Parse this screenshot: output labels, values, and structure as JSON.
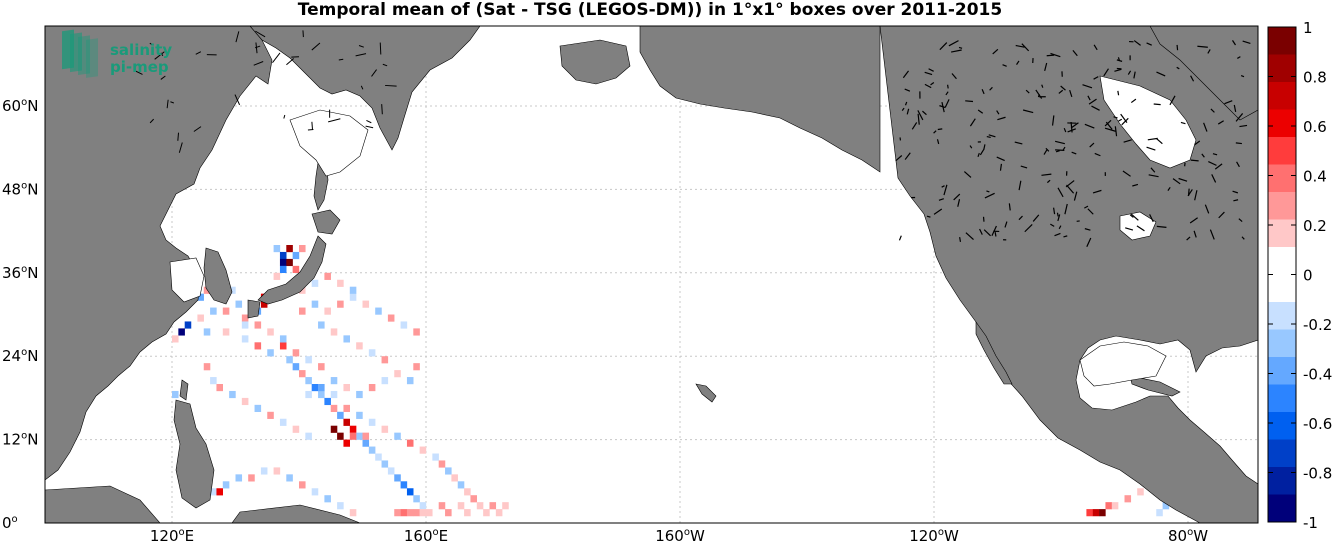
{
  "title": "Temporal mean of (Sat - TSG (LEGOS-DM)) in 1°x1° boxes over 2011-2015",
  "logo": {
    "line1": "salinity",
    "line2": "pi-mep",
    "color": "#1a9a7a"
  },
  "colors": {
    "land": "#808080",
    "ocean": "#ffffff",
    "grid": "#c8c8c8",
    "coast": "#000000"
  },
  "lat_labels": [
    {
      "deg": 60,
      "text": "60",
      "suffix": "N"
    },
    {
      "deg": 48,
      "text": "48",
      "suffix": "N"
    },
    {
      "deg": 36,
      "text": "36",
      "suffix": "N"
    },
    {
      "deg": 24,
      "text": "24",
      "suffix": "N"
    },
    {
      "deg": 12,
      "text": "12",
      "suffix": "N"
    },
    {
      "deg": 0,
      "text": "0",
      "suffix": ""
    }
  ],
  "lon_labels": [
    {
      "deg": 120,
      "text": "120",
      "suffix": "E"
    },
    {
      "deg": 160,
      "text": "160",
      "suffix": "E"
    },
    {
      "deg": 200,
      "text": "160",
      "suffix": "W"
    },
    {
      "deg": 240,
      "text": "120",
      "suffix": "W"
    },
    {
      "deg": 280,
      "text": "80",
      "suffix": "W"
    }
  ],
  "colorbar": {
    "min": -1,
    "max": 1,
    "tick_labels": [
      "1",
      "0.8",
      "0.6",
      "0.4",
      "0.2",
      "0",
      "-0.2",
      "-0.4",
      "-0.6",
      "-0.8",
      "-1"
    ],
    "colors_top_to_bottom": [
      "#7a0000",
      "#a00000",
      "#c80000",
      "#ec0000",
      "#ff3c3c",
      "#ff7070",
      "#ff9898",
      "#ffc8c8",
      "#ffffff",
      "#ffffff",
      "#c8e0ff",
      "#98c8ff",
      "#64a8ff",
      "#2c84ff",
      "#0060f0",
      "#0040c8",
      "#0020a0",
      "#00007a"
    ]
  },
  "chart_data": {
    "type": "heatmap",
    "title": "Temporal mean of (Sat - TSG (LEGOS-DM)) in 1°x1° boxes over 2011-2015",
    "xlabel": "",
    "ylabel": "",
    "lon_range_east": [
      100,
      293
    ],
    "lat_range": [
      0,
      70
    ],
    "value_range": [
      -1,
      1
    ],
    "cells": [
      [
        136,
        39,
        -0.3
      ],
      [
        137,
        38,
        -0.7
      ],
      [
        137,
        37,
        -1
      ],
      [
        138,
        39,
        0.8
      ],
      [
        138,
        37,
        0.9
      ],
      [
        139,
        38,
        -0.4
      ],
      [
        139,
        36,
        0.4
      ],
      [
        140,
        39,
        0.3
      ],
      [
        141,
        36,
        -0.3
      ],
      [
        137,
        36,
        -0.5
      ],
      [
        136,
        35,
        0.2
      ],
      [
        116,
        35,
        1
      ],
      [
        117,
        35,
        1
      ],
      [
        118,
        35,
        1
      ],
      [
        119,
        35,
        0.6
      ],
      [
        121,
        34,
        -0.6
      ],
      [
        122,
        33,
        -0.8
      ],
      [
        123,
        33,
        -0.5
      ],
      [
        122,
        34,
        -0.3
      ],
      [
        124,
        32,
        -0.4
      ],
      [
        125,
        33,
        0.3
      ],
      [
        127,
        32,
        -0.3
      ],
      [
        128,
        33,
        -0.2
      ],
      [
        129,
        33,
        -0.2
      ],
      [
        134,
        32,
        0.6
      ],
      [
        134,
        31,
        0.7
      ],
      [
        133,
        30,
        -0.4
      ],
      [
        132,
        30,
        0.3
      ],
      [
        131,
        29,
        0.3
      ],
      [
        130,
        31,
        -0.3
      ],
      [
        128,
        30,
        0.3
      ],
      [
        126,
        30,
        -0.3
      ],
      [
        124,
        29,
        0.2
      ],
      [
        122,
        28,
        -0.7
      ],
      [
        121,
        27,
        -0.9
      ],
      [
        120,
        26,
        0.2
      ],
      [
        125,
        27,
        -0.3
      ],
      [
        128,
        27,
        0.2
      ],
      [
        131,
        26,
        -0.2
      ],
      [
        133,
        25,
        0.4
      ],
      [
        135,
        24,
        -0.3
      ],
      [
        137,
        25,
        0.5
      ],
      [
        138,
        23,
        -0.3
      ],
      [
        139,
        22,
        -0.4
      ],
      [
        140,
        21,
        0.3
      ],
      [
        141,
        20,
        -0.3
      ],
      [
        142,
        19,
        -0.5
      ],
      [
        143,
        18,
        -0.3
      ],
      [
        144,
        17,
        -0.5
      ],
      [
        145,
        16,
        0.3
      ],
      [
        146,
        15,
        -0.4
      ],
      [
        147,
        14,
        0.7
      ],
      [
        148,
        13,
        0.6
      ],
      [
        149,
        12,
        -0.3
      ],
      [
        150,
        11,
        -0.4
      ],
      [
        151,
        10,
        -0.3
      ],
      [
        152,
        9,
        -0.2
      ],
      [
        153,
        8,
        -0.3
      ],
      [
        154,
        7,
        -0.2
      ],
      [
        155,
        6,
        -0.4
      ],
      [
        156,
        5,
        -0.5
      ],
      [
        157,
        4,
        -0.6
      ],
      [
        158,
        3,
        -0.3
      ],
      [
        159,
        2,
        -0.2
      ],
      [
        160,
        1,
        0.2
      ],
      [
        145,
        13,
        1
      ],
      [
        146,
        12,
        0.9
      ],
      [
        147,
        11,
        0.6
      ],
      [
        148,
        12,
        0.4
      ],
      [
        150,
        12,
        0.3
      ],
      [
        141,
        18,
        -0.2
      ],
      [
        143,
        19,
        -0.4
      ],
      [
        145,
        18,
        -0.2
      ],
      [
        147,
        16,
        0.3
      ],
      [
        149,
        15,
        -0.3
      ],
      [
        151,
        14,
        -0.2
      ],
      [
        153,
        13,
        0.2
      ],
      [
        155,
        12,
        -0.3
      ],
      [
        157,
        11,
        0.4
      ],
      [
        159,
        10,
        0.2
      ],
      [
        125,
        22,
        0.3
      ],
      [
        126,
        20,
        -0.2
      ],
      [
        127,
        19,
        0.3
      ],
      [
        129,
        18,
        -0.3
      ],
      [
        131,
        17,
        0.2
      ],
      [
        133,
        16,
        -0.3
      ],
      [
        135,
        15,
        0.3
      ],
      [
        137,
        14,
        -0.2
      ],
      [
        139,
        13,
        0.2
      ],
      [
        141,
        12,
        -0.2
      ],
      [
        120,
        18,
        -0.3
      ],
      [
        121,
        16,
        0.3
      ],
      [
        122,
        14,
        -0.3
      ],
      [
        123,
        11,
        -0.2
      ],
      [
        124,
        8,
        0.5
      ],
      [
        125,
        5,
        -0.3
      ],
      [
        126,
        4,
        -0.2
      ],
      [
        127,
        4,
        0.6
      ],
      [
        128,
        5,
        -0.3
      ],
      [
        130,
        6,
        -0.3
      ],
      [
        132,
        6,
        0.3
      ],
      [
        134,
        7,
        -0.2
      ],
      [
        136,
        7,
        0.2
      ],
      [
        138,
        6,
        -0.3
      ],
      [
        140,
        5,
        0.3
      ],
      [
        142,
        4,
        -0.2
      ],
      [
        144,
        3,
        -0.3
      ],
      [
        146,
        2,
        -0.2
      ],
      [
        148,
        1,
        0.2
      ],
      [
        155,
        1,
        0.3
      ],
      [
        156,
        1,
        0.4
      ],
      [
        157,
        1,
        0.3
      ],
      [
        158,
        1,
        0.3
      ],
      [
        159,
        1,
        0.2
      ],
      [
        162,
        2,
        0.3
      ],
      [
        163,
        1,
        0.3
      ],
      [
        165,
        2,
        0.2
      ],
      [
        166,
        1,
        0.2
      ],
      [
        161,
        9,
        -0.2
      ],
      [
        162,
        8,
        0.3
      ],
      [
        163,
        7,
        -0.3
      ],
      [
        164,
        6,
        0.2
      ],
      [
        165,
        5,
        -0.3
      ],
      [
        166,
        4,
        0.2
      ],
      [
        167,
        3,
        0.3
      ],
      [
        168,
        2,
        0.2
      ],
      [
        169,
        1,
        0.2
      ],
      [
        170,
        2,
        0.3
      ],
      [
        171,
        1,
        0.2
      ],
      [
        172,
        2,
        0.2
      ],
      [
        158,
        22,
        0.3
      ],
      [
        157,
        20,
        -0.3
      ],
      [
        155,
        21,
        0.2
      ],
      [
        153,
        20,
        -0.2
      ],
      [
        151,
        19,
        0.3
      ],
      [
        149,
        18,
        -0.3
      ],
      [
        147,
        19,
        0.2
      ],
      [
        145,
        20,
        -0.3
      ],
      [
        143,
        22,
        0.3
      ],
      [
        141,
        23,
        -0.2
      ],
      [
        139,
        24,
        0.3
      ],
      [
        137,
        26,
        -0.3
      ],
      [
        135,
        27,
        0.2
      ],
      [
        133,
        28,
        0.3
      ],
      [
        131,
        28,
        -0.2
      ],
      [
        140,
        30,
        0.3
      ],
      [
        142,
        31,
        -0.3
      ],
      [
        144,
        30,
        0.2
      ],
      [
        146,
        31,
        0.3
      ],
      [
        148,
        32,
        -0.2
      ],
      [
        150,
        31,
        0.2
      ],
      [
        152,
        30,
        -0.3
      ],
      [
        154,
        29,
        0.3
      ],
      [
        156,
        28,
        -0.2
      ],
      [
        158,
        27,
        0.3
      ],
      [
        143,
        28,
        -0.3
      ],
      [
        145,
        27,
        0.2
      ],
      [
        147,
        26,
        -0.3
      ],
      [
        149,
        25,
        0.2
      ],
      [
        151,
        24,
        -0.2
      ],
      [
        153,
        23,
        0.3
      ],
      [
        140,
        33,
        0.2
      ],
      [
        142,
        34,
        -0.2
      ],
      [
        144,
        35,
        0.3
      ],
      [
        146,
        34,
        0.2
      ],
      [
        148,
        33,
        -0.3
      ],
      [
        264,
        1,
        0.5
      ],
      [
        265,
        1,
        0.7
      ],
      [
        266,
        1,
        0.9
      ],
      [
        267,
        2,
        0.4
      ],
      [
        268,
        2,
        0.2
      ],
      [
        270,
        3,
        0.3
      ],
      [
        272,
        4,
        0.2
      ],
      [
        275,
        1,
        -0.2
      ],
      [
        276,
        2,
        -0.3
      ],
      [
        277,
        3,
        -0.3
      ],
      [
        278,
        4,
        -0.4
      ],
      [
        279,
        5,
        -0.3
      ],
      [
        280,
        6,
        -0.7
      ],
      [
        281,
        7,
        -0.5
      ],
      [
        279,
        3,
        -0.6
      ],
      [
        276,
        5,
        -0.2
      ]
    ]
  }
}
